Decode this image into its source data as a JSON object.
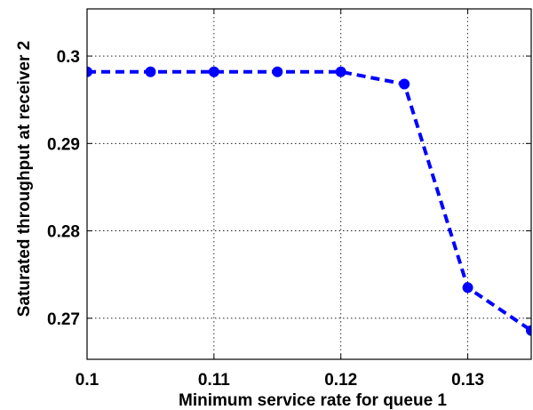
{
  "chart_data": {
    "type": "line",
    "title": "",
    "xlabel": "Minimum service rate for queue 1",
    "ylabel": "Saturated throughput at receiver 2",
    "xlim": [
      0.1,
      0.135
    ],
    "ylim": [
      0.2653,
      0.3054
    ],
    "x_ticks": [
      0.1,
      0.11,
      0.12,
      0.13
    ],
    "x_tick_labels": [
      "0.1",
      "0.11",
      "0.12",
      "0.13"
    ],
    "y_ticks": [
      0.27,
      0.28,
      0.29,
      0.3
    ],
    "y_tick_labels": [
      "0.27",
      "0.28",
      "0.29",
      "0.3"
    ],
    "grid": true,
    "legend": "none",
    "series": [
      {
        "color": "#0000ff",
        "line_style": "dashed",
        "marker": "filled-circle",
        "x": [
          0.1,
          0.105,
          0.11,
          0.115,
          0.12,
          0.125,
          0.13,
          0.135
        ],
        "y": [
          0.2982,
          0.2982,
          0.2982,
          0.2982,
          0.2982,
          0.2968,
          0.2735,
          0.2686
        ]
      }
    ]
  }
}
